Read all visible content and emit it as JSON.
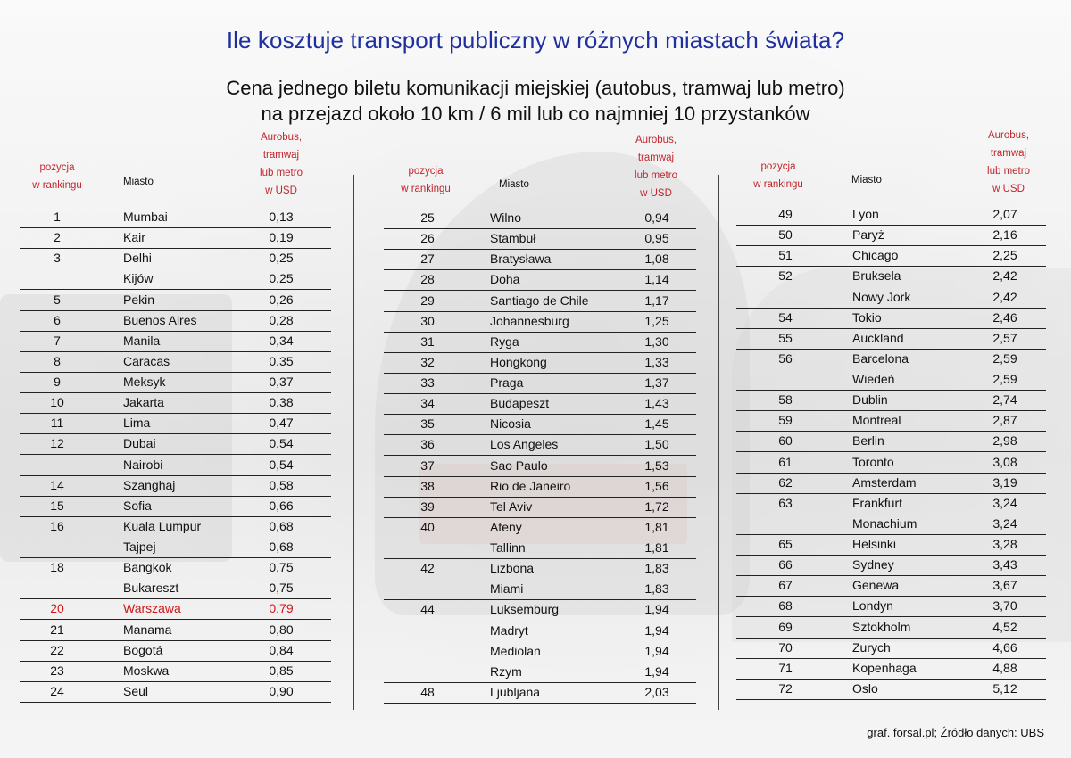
{
  "title": "Ile kosztuje transport publiczny w różnych miastach świata?",
  "subtitle_line1": "Cena jednego biletu komunikacji miejskiej (autobus, tramwaj lub metro)",
  "subtitle_line2": "na przejazd około 10 km / 6 mil lub co najmniej 10 przystanków",
  "headers": {
    "rank": [
      "pozycja",
      "w rankingu"
    ],
    "city": "Miasto",
    "price": [
      "Aurobus,",
      "tramwaj",
      "lub metro",
      "w USD"
    ]
  },
  "columns": [
    [
      {
        "rank": "1",
        "city": "Mumbai",
        "price": "0,13",
        "line": true
      },
      {
        "rank": "2",
        "city": "Kair",
        "price": "0,19",
        "line": true
      },
      {
        "rank": "3",
        "city": "Delhi",
        "price": "0,25",
        "line": false
      },
      {
        "rank": "",
        "city": "Kijów",
        "price": "0,25",
        "line": true
      },
      {
        "rank": "5",
        "city": "Pekin",
        "price": "0,26",
        "line": true
      },
      {
        "rank": "6",
        "city": "Buenos Aires",
        "price": "0,28",
        "line": true
      },
      {
        "rank": "7",
        "city": "Manila",
        "price": "0,34",
        "line": true
      },
      {
        "rank": "8",
        "city": "Caracas",
        "price": "0,35",
        "line": true
      },
      {
        "rank": "9",
        "city": "Meksyk",
        "price": "0,37",
        "line": true
      },
      {
        "rank": "10",
        "city": "Jakarta",
        "price": "0,38",
        "line": true
      },
      {
        "rank": "11",
        "city": "Lima",
        "price": "0,47",
        "line": true
      },
      {
        "rank": "12",
        "city": "Dubai",
        "price": "0,54",
        "line": true
      },
      {
        "rank": "",
        "city": "Nairobi",
        "price": "0,54",
        "line": true
      },
      {
        "rank": "14",
        "city": "Szanghaj",
        "price": "0,58",
        "line": true
      },
      {
        "rank": "15",
        "city": "Sofia",
        "price": "0,66",
        "line": true
      },
      {
        "rank": "16",
        "city": "Kuala Lumpur",
        "price": "0,68",
        "line": false
      },
      {
        "rank": "",
        "city": "Tajpej",
        "price": "0,68",
        "line": true
      },
      {
        "rank": "18",
        "city": "Bangkok",
        "price": "0,75",
        "line": false
      },
      {
        "rank": "",
        "city": "Bukareszt",
        "price": "0,75",
        "line": true
      },
      {
        "rank": "20",
        "city": "Warszawa",
        "price": "0,79",
        "line": true,
        "highlight": true
      },
      {
        "rank": "21",
        "city": "Manama",
        "price": "0,80",
        "line": true
      },
      {
        "rank": "22",
        "city": "Bogotá",
        "price": "0,84",
        "line": true
      },
      {
        "rank": "23",
        "city": "Moskwa",
        "price": "0,85",
        "line": true
      },
      {
        "rank": "24",
        "city": "Seul",
        "price": "0,90",
        "line": true
      }
    ],
    [
      {
        "rank": "25",
        "city": "Wilno",
        "price": "0,94",
        "line": true
      },
      {
        "rank": "26",
        "city": "Stambuł",
        "price": "0,95",
        "line": true
      },
      {
        "rank": "27",
        "city": "Bratysława",
        "price": "1,08",
        "line": true
      },
      {
        "rank": "28",
        "city": "Doha",
        "price": "1,14",
        "line": true
      },
      {
        "rank": "29",
        "city": "Santiago de Chile",
        "price": "1,17",
        "line": true
      },
      {
        "rank": "30",
        "city": "Johannesburg",
        "price": "1,25",
        "line": true
      },
      {
        "rank": "31",
        "city": "Ryga",
        "price": "1,30",
        "line": true
      },
      {
        "rank": "32",
        "city": "Hongkong",
        "price": "1,33",
        "line": true
      },
      {
        "rank": "33",
        "city": "Praga",
        "price": "1,37",
        "line": true
      },
      {
        "rank": "34",
        "city": "Budapeszt",
        "price": "1,43",
        "line": true
      },
      {
        "rank": "35",
        "city": "Nicosia",
        "price": "1,45",
        "line": true
      },
      {
        "rank": "36",
        "city": "Los Angeles",
        "price": "1,50",
        "line": true
      },
      {
        "rank": "37",
        "city": "Sao Paulo",
        "price": "1,53",
        "line": true
      },
      {
        "rank": "38",
        "city": "Rio de Janeiro",
        "price": "1,56",
        "line": true
      },
      {
        "rank": "39",
        "city": "Tel Aviv",
        "price": "1,72",
        "line": true
      },
      {
        "rank": "40",
        "city": "Ateny",
        "price": "1,81",
        "line": false
      },
      {
        "rank": "",
        "city": "Tallinn",
        "price": "1,81",
        "line": true
      },
      {
        "rank": "42",
        "city": "Lizbona",
        "price": "1,83",
        "line": false
      },
      {
        "rank": "",
        "city": "Miami",
        "price": "1,83",
        "line": true
      },
      {
        "rank": "44",
        "city": "Luksemburg",
        "price": "1,94",
        "line": false
      },
      {
        "rank": "",
        "city": "Madryt",
        "price": "1,94",
        "line": false
      },
      {
        "rank": "",
        "city": "Mediolan",
        "price": "1,94",
        "line": false
      },
      {
        "rank": "",
        "city": "Rzym",
        "price": "1,94",
        "line": true
      },
      {
        "rank": "48",
        "city": "Ljubljana",
        "price": "2,03",
        "line": true
      }
    ],
    [
      {
        "rank": "49",
        "city": "Lyon",
        "price": "2,07",
        "line": true
      },
      {
        "rank": "50",
        "city": "Paryż",
        "price": "2,16",
        "line": true
      },
      {
        "rank": "51",
        "city": "Chicago",
        "price": "2,25",
        "line": true
      },
      {
        "rank": "52",
        "city": "Bruksela",
        "price": "2,42",
        "line": false
      },
      {
        "rank": "",
        "city": "Nowy Jork",
        "price": "2,42",
        "line": true
      },
      {
        "rank": "54",
        "city": "Tokio",
        "price": "2,46",
        "line": true
      },
      {
        "rank": "55",
        "city": "Auckland",
        "price": "2,57",
        "line": true
      },
      {
        "rank": "56",
        "city": "Barcelona",
        "price": "2,59",
        "line": false
      },
      {
        "rank": "",
        "city": "Wiedeń",
        "price": "2,59",
        "line": true
      },
      {
        "rank": "58",
        "city": "Dublin",
        "price": "2,74",
        "line": true
      },
      {
        "rank": "59",
        "city": "Montreal",
        "price": "2,87",
        "line": true
      },
      {
        "rank": "60",
        "city": "Berlin",
        "price": "2,98",
        "line": true
      },
      {
        "rank": "61",
        "city": "Toronto",
        "price": "3,08",
        "line": true
      },
      {
        "rank": "62",
        "city": "Amsterdam",
        "price": "3,19",
        "line": true
      },
      {
        "rank": "63",
        "city": "Frankfurt",
        "price": "3,24",
        "line": false
      },
      {
        "rank": "",
        "city": "Monachium",
        "price": "3,24",
        "line": true
      },
      {
        "rank": "65",
        "city": "Helsinki",
        "price": "3,28",
        "line": true
      },
      {
        "rank": "66",
        "city": "Sydney",
        "price": "3,43",
        "line": true
      },
      {
        "rank": "67",
        "city": "Genewa",
        "price": "3,67",
        "line": true
      },
      {
        "rank": "68",
        "city": "Londyn",
        "price": "3,70",
        "line": true
      },
      {
        "rank": "69",
        "city": "Sztokholm",
        "price": "4,52",
        "line": true
      },
      {
        "rank": "70",
        "city": "Zurych",
        "price": "4,66",
        "line": true
      },
      {
        "rank": "71",
        "city": "Kopenhaga",
        "price": "4,88",
        "line": true
      },
      {
        "rank": "72",
        "city": "Oslo",
        "price": "5,12",
        "line": true
      }
    ]
  ],
  "source": "graf. forsal.pl; Źródło danych: UBS",
  "colors": {
    "title": "#1f2fa0",
    "header_accent": "#c0262d",
    "highlight": "#d01818"
  }
}
